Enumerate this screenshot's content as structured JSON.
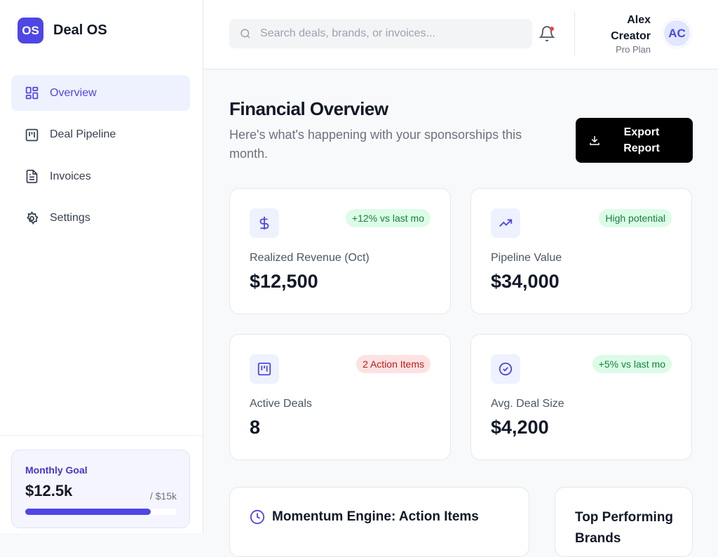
{
  "app": {
    "logo": "OS",
    "name": "Deal OS"
  },
  "sidebar": {
    "items": [
      {
        "label": "Overview",
        "icon": "grid-icon",
        "active": true
      },
      {
        "label": "Deal Pipeline",
        "icon": "kanban-icon"
      },
      {
        "label": "Invoices",
        "icon": "file-icon"
      },
      {
        "label": "Settings",
        "icon": "gear-icon"
      }
    ],
    "goal": {
      "label": "Monthly Goal",
      "value": "$12.5k",
      "target": "/ $15k",
      "progress_percent": 83
    }
  },
  "header": {
    "search_placeholder": "Search deals, brands, or invoices...",
    "user": {
      "name": "Alex Creator",
      "plan": "Pro Plan",
      "initials": "AC"
    }
  },
  "main": {
    "title": "Financial Overview",
    "subtitle": "Here's what's happening with your sponsorships this month.",
    "export_label": "Export Report",
    "cards": [
      {
        "label": "Realized Revenue (Oct)",
        "value": "$12,500",
        "badge": "+12% vs last mo",
        "badge_tone": "green",
        "icon": "dollar-icon"
      },
      {
        "label": "Pipeline Value",
        "value": "$34,000",
        "badge": "High potential",
        "badge_tone": "green",
        "icon": "trending-up-icon"
      },
      {
        "label": "Active Deals",
        "value": "8",
        "badge": "2 Action Items",
        "badge_tone": "red",
        "icon": "kanban-icon"
      },
      {
        "label": "Avg. Deal Size",
        "value": "$4,200",
        "badge": "+5% vs last mo",
        "badge_tone": "green",
        "icon": "check-circle-icon"
      }
    ],
    "panels": {
      "momentum": "Momentum Engine: Action Items",
      "top": "Top Performing Brands"
    }
  },
  "colors": {
    "accent": "#4f46e5",
    "green_badge": "#dcfce7",
    "red_badge": "#fee2e2"
  }
}
